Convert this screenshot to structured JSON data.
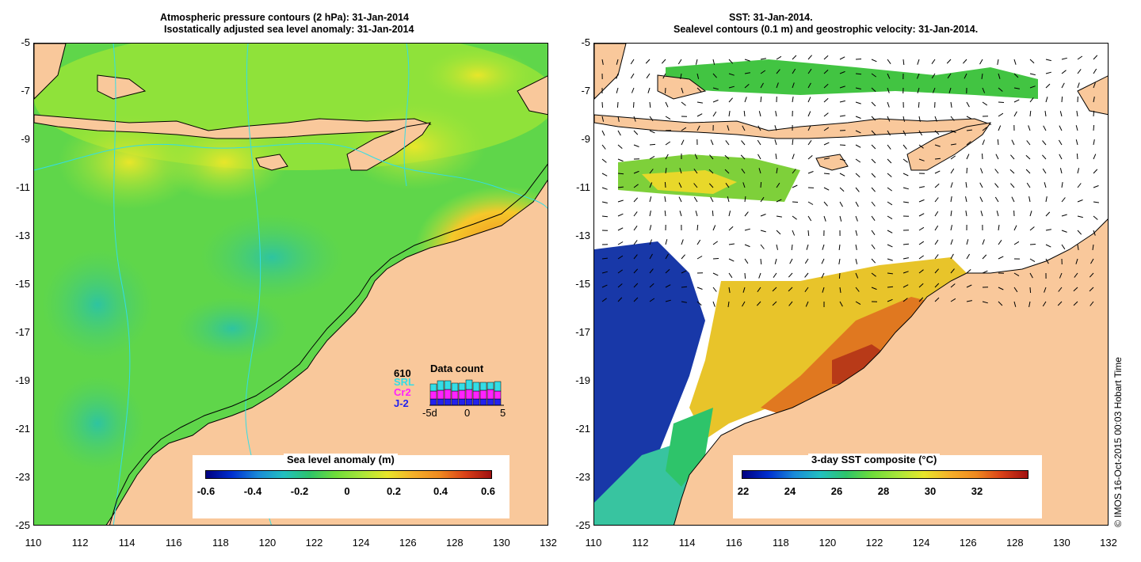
{
  "left_panel": {
    "title_line1": "Atmospheric pressure contours (2 hPa): 31-Jan-2014",
    "title_line2": "Isostatically adjusted sea level anomaly: 31-Jan-2014",
    "colorbar": {
      "title": "Sea level anomaly (m)",
      "ticks": [
        "-0.6",
        "-0.4",
        "-0.2",
        "0",
        "0.2",
        "0.4",
        "0.6"
      ]
    },
    "data_count": {
      "title": "Data count",
      "missions": [
        "610",
        "SRL",
        "Cr2",
        "J-2"
      ],
      "x_ticks": [
        "-5d",
        "0",
        "5"
      ],
      "colors": [
        "#000000",
        "#33dde6",
        "#ff22ff",
        "#2222ee"
      ]
    }
  },
  "right_panel": {
    "title_line1": "SST: 31-Jan-2014.",
    "title_line2": "Sealevel contours (0.1 m) and geostrophic velocity: 31-Jan-2014.",
    "colorbar": {
      "title": "3-day SST composite (°C)",
      "ticks": [
        "22",
        "24",
        "26",
        "28",
        "30",
        "32"
      ]
    }
  },
  "axes": {
    "y_ticks": [
      "-5",
      "-7",
      "-9",
      "-11",
      "-13",
      "-15",
      "-17",
      "-19",
      "-21",
      "-23",
      "-25"
    ],
    "x_ticks": [
      "110",
      "112",
      "114",
      "116",
      "118",
      "120",
      "122",
      "124",
      "126",
      "128",
      "130",
      "132"
    ],
    "lat_range": [
      -25,
      -5
    ],
    "lon_range": [
      110,
      132
    ]
  },
  "footer": "© IMOS 16-Oct-2015 00:03 Hobart Time",
  "colors": {
    "land": "#f9c89b",
    "ocean_green": "#6fdc3a",
    "ocean_light": "#9fe63a",
    "ocean_teal": "#33c880",
    "contour_cyan": "#33dde6"
  }
}
